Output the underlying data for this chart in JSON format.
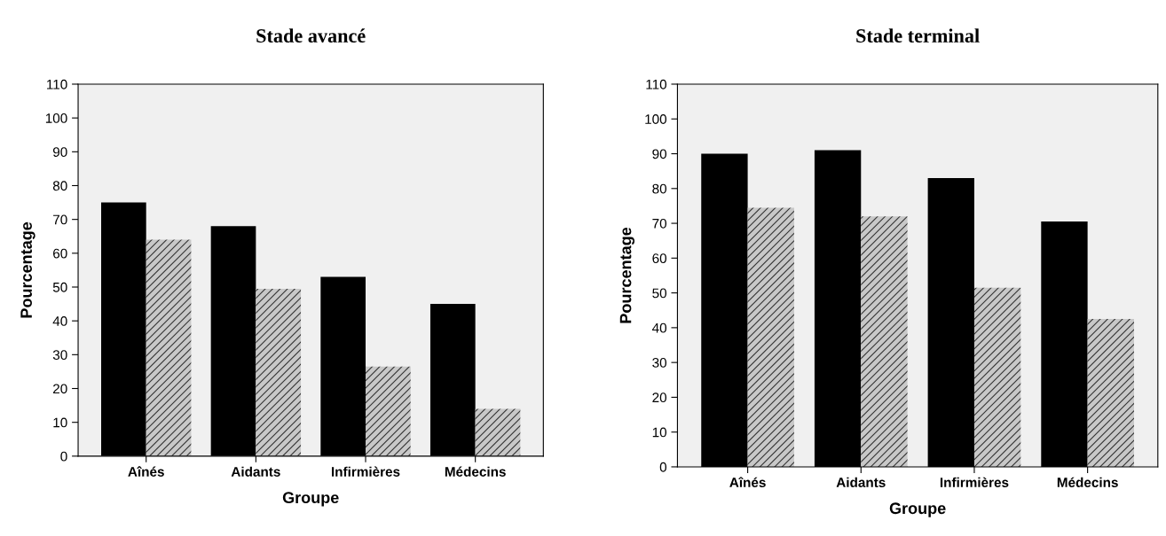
{
  "chart_data": [
    {
      "type": "bar",
      "title": "Stade avancé",
      "xlabel": "Groupe",
      "ylabel": "Pourcentage",
      "categories": [
        "Aînés",
        "Aidants",
        "Infirmières",
        "Médecins"
      ],
      "series": [
        {
          "color": "#000000",
          "values": [
            75,
            68,
            53,
            45
          ]
        },
        {
          "color": "#c8c8c8",
          "values": [
            64,
            49.5,
            26.5,
            14
          ]
        }
      ],
      "ylim": [
        0,
        110
      ],
      "yticks": [
        0,
        10,
        20,
        30,
        40,
        50,
        60,
        70,
        80,
        90,
        100,
        110
      ],
      "grid": false,
      "legend": false
    },
    {
      "type": "bar",
      "title": "Stade terminal",
      "xlabel": "Groupe",
      "ylabel": "Pourcentage",
      "categories": [
        "Aînés",
        "Aidants",
        "Infirmières",
        "Médecins"
      ],
      "series": [
        {
          "color": "#000000",
          "values": [
            90,
            91,
            83,
            70.5
          ]
        },
        {
          "color": "#c8c8c8",
          "values": [
            74.5,
            72,
            51.5,
            42.5
          ]
        }
      ],
      "ylim": [
        0,
        110
      ],
      "yticks": [
        0,
        10,
        20,
        30,
        40,
        50,
        60,
        70,
        80,
        90,
        100,
        110
      ],
      "grid": false,
      "legend": false
    }
  ]
}
